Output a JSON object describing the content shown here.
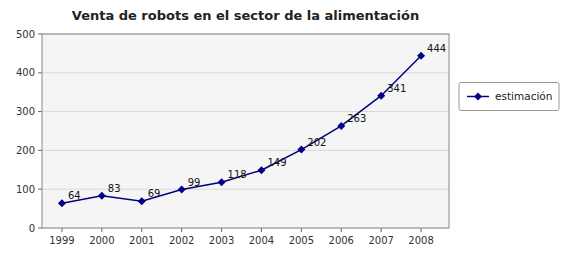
{
  "chart_data": {
    "type": "line",
    "title": "Venta de robots en el sector de la alimentación",
    "x": [
      1999,
      2000,
      2001,
      2002,
      2003,
      2004,
      2005,
      2006,
      2007,
      2008
    ],
    "xlim": [
      1998.5,
      2008.7
    ],
    "xticks": [
      1999,
      2000,
      2001,
      2002,
      2003,
      2004,
      2005,
      2006,
      2007,
      2008
    ],
    "ylim": [
      0,
      500
    ],
    "yticks": [
      0,
      100,
      200,
      300,
      400,
      500
    ],
    "grid": true,
    "legend": "right",
    "data_labels": true,
    "series": [
      {
        "name": "estimación",
        "color": "#000080",
        "marker": "diamond",
        "values": [
          64,
          83,
          69,
          99,
          118,
          149,
          202,
          263,
          341,
          444
        ]
      }
    ]
  }
}
